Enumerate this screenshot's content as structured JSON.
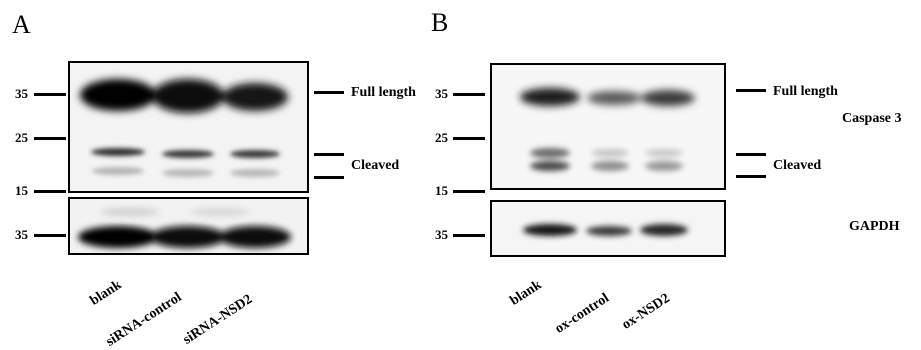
{
  "panels": [
    {
      "letter": "A",
      "markers": [
        "35",
        "25",
        "15",
        "35"
      ],
      "band_labels": {
        "full_length": "Full length",
        "cleaved": "Cleaved"
      },
      "lanes": [
        "blank",
        "siRNA-control",
        "siRNA-NSD2"
      ]
    },
    {
      "letter": "B",
      "markers": [
        "35",
        "25",
        "15",
        "35"
      ],
      "band_labels": {
        "full_length": "Full length",
        "cleaved": "Cleaved"
      },
      "protein_labels": {
        "top": "Caspase 3",
        "bottom": "GAPDH"
      },
      "lanes": [
        "blank",
        "ox-control",
        "ox-NSD2"
      ]
    }
  ]
}
